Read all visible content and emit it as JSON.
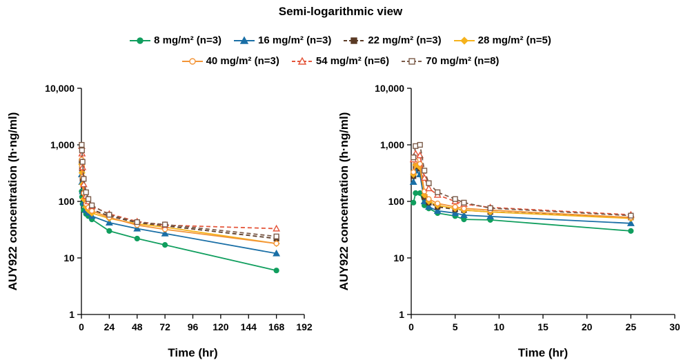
{
  "title": "Semi-logarithmic view",
  "colors": {
    "8 mg/m2": "#109e5e",
    "16 mg/m2": "#1a6fa6",
    "22 mg/m2": "#5a3a25",
    "28 mg/m2": "#f5b21c",
    "40 mg/m2": "#f39437",
    "54 mg/m2": "#e4553a",
    "70 mg/m2": "#7a5a48"
  },
  "legend": [
    {
      "key": "8 mg/m2",
      "dose": "8 mg/m²",
      "n": "(n=3)",
      "marker": "circle-filled",
      "dash": false
    },
    {
      "key": "16 mg/m2",
      "dose": "16 mg/m²",
      "n": "(n=3)",
      "marker": "triangle-filled",
      "dash": false
    },
    {
      "key": "22 mg/m2",
      "dose": "22 mg/m²",
      "n": "(n=3)",
      "marker": "square-filled",
      "dash": true
    },
    {
      "key": "28 mg/m2",
      "dose": "28 mg/m²",
      "n": "(n=5)",
      "marker": "diamond-filled",
      "dash": false
    },
    {
      "key": "40 mg/m2",
      "dose": "40 mg/m²",
      "n": "(n=3)",
      "marker": "circle-open",
      "dash": false
    },
    {
      "key": "54 mg/m2",
      "dose": "54 mg/m²",
      "n": "(n=6)",
      "marker": "triangle-open",
      "dash": true
    },
    {
      "key": "70 mg/m2",
      "dose": "70 mg/m²",
      "n": "(n=8)",
      "marker": "square-open",
      "dash": true
    }
  ],
  "chart_data": [
    {
      "type": "line",
      "title": "",
      "xlabel": "Time (hr)",
      "ylabel": "AUY922 concentration (h·ng/ml)",
      "xlim": [
        0,
        192
      ],
      "ylim": [
        1,
        10000
      ],
      "yscale": "log",
      "xticks": [
        "0",
        "24",
        "48",
        "72",
        "96",
        "120",
        "144",
        "168",
        "192"
      ],
      "yticks": [
        "1",
        "10",
        "100",
        "1,000",
        "10,000"
      ],
      "grid": false,
      "series": [
        {
          "name": "8 mg/m² (n=3)",
          "x": [
            0.25,
            0.5,
            1,
            2,
            4,
            6,
            9,
            24,
            48,
            72,
            168
          ],
          "y": [
            150,
            120,
            90,
            70,
            60,
            55,
            48,
            30,
            22,
            17,
            6
          ]
        },
        {
          "name": "16 mg/m² (n=3)",
          "x": [
            0.25,
            0.5,
            1,
            2,
            4,
            6,
            9,
            24,
            48,
            72,
            168
          ],
          "y": [
            300,
            220,
            150,
            95,
            70,
            63,
            55,
            42,
            33,
            27,
            12
          ]
        },
        {
          "name": "22 mg/m² (n=3)",
          "x": [
            0.25,
            0.5,
            1,
            2,
            4,
            6,
            9,
            24,
            48,
            72,
            168
          ],
          "y": [
            500,
            380,
            250,
            140,
            95,
            82,
            72,
            55,
            42,
            37,
            22
          ]
        },
        {
          "name": "28 mg/m² (n=5)",
          "x": [
            0.25,
            0.5,
            1,
            2,
            4,
            6,
            9,
            24,
            48,
            72,
            168
          ],
          "y": [
            450,
            320,
            200,
            110,
            80,
            70,
            62,
            50,
            40,
            35,
            18
          ]
        },
        {
          "name": "40 mg/m² (n=3)",
          "x": [
            0.25,
            0.5,
            1,
            2,
            4,
            6,
            9,
            24,
            48,
            72,
            168
          ],
          "y": [
            550,
            420,
            270,
            140,
            90,
            78,
            68,
            52,
            38,
            32,
            18
          ]
        },
        {
          "name": "54 mg/m² (n=6)",
          "x": [
            0.25,
            0.5,
            1,
            2,
            4,
            6,
            9,
            24,
            48,
            72,
            168
          ],
          "y": [
            950,
            700,
            400,
            200,
            125,
            100,
            82,
            60,
            44,
            38,
            33
          ]
        },
        {
          "name": "70 mg/m² (n=8)",
          "x": [
            0.25,
            0.5,
            1,
            2,
            4,
            6,
            9,
            24,
            48,
            72,
            168
          ],
          "y": [
            1000,
            800,
            500,
            250,
            145,
            110,
            85,
            58,
            43,
            39,
            24
          ]
        }
      ]
    },
    {
      "type": "line",
      "title": "",
      "xlabel": "Time (hr)",
      "ylabel": "AUY922 concentration (h·ng/ml)",
      "xlim": [
        0,
        30
      ],
      "ylim": [
        1,
        10000
      ],
      "yscale": "log",
      "xticks": [
        "0",
        "5",
        "10",
        "15",
        "20",
        "25",
        "30"
      ],
      "yticks": [
        "1",
        "10",
        "100",
        "1,000",
        "10,000"
      ],
      "grid": false,
      "series": [
        {
          "name": "8 mg/m² (n=3)",
          "x": [
            0.25,
            0.5,
            1,
            1.5,
            2,
            3,
            5,
            6,
            9,
            25
          ],
          "y": [
            95,
            140,
            140,
            85,
            75,
            62,
            55,
            48,
            47,
            30
          ]
        },
        {
          "name": "16 mg/m² (n=3)",
          "x": [
            0.25,
            0.5,
            1,
            1.5,
            2,
            3,
            5,
            6,
            9,
            25
          ],
          "y": [
            220,
            350,
            300,
            100,
            80,
            68,
            62,
            57,
            54,
            41
          ]
        },
        {
          "name": "22 mg/m² (n=3)",
          "x": [
            0.25,
            0.5,
            1,
            1.5,
            2,
            3,
            5,
            6,
            9,
            25
          ],
          "y": [
            280,
            420,
            380,
            120,
            95,
            80,
            72,
            70,
            65,
            52
          ]
        },
        {
          "name": "28 mg/m² (n=5)",
          "x": [
            0.25,
            0.5,
            1,
            1.5,
            2,
            3,
            5,
            6,
            9,
            25
          ],
          "y": [
            300,
            440,
            400,
            130,
            100,
            85,
            75,
            70,
            65,
            50
          ]
        },
        {
          "name": "40 mg/m² (n=3)",
          "x": [
            0.25,
            0.5,
            1,
            1.5,
            2,
            3,
            5,
            6,
            9,
            25
          ],
          "y": [
            330,
            520,
            460,
            150,
            110,
            92,
            80,
            75,
            70,
            52
          ]
        },
        {
          "name": "54 mg/m² (n=6)",
          "x": [
            0.25,
            0.5,
            1,
            1.5,
            2,
            3,
            5,
            6,
            9,
            25
          ],
          "y": [
            550,
            700,
            650,
            260,
            170,
            130,
            100,
            90,
            78,
            58
          ]
        },
        {
          "name": "70 mg/m² (n=8)",
          "x": [
            0.25,
            0.5,
            1,
            1.5,
            2,
            3,
            5,
            6,
            9,
            25
          ],
          "y": [
            600,
            950,
            1000,
            350,
            210,
            145,
            110,
            95,
            76,
            56
          ]
        }
      ]
    }
  ]
}
